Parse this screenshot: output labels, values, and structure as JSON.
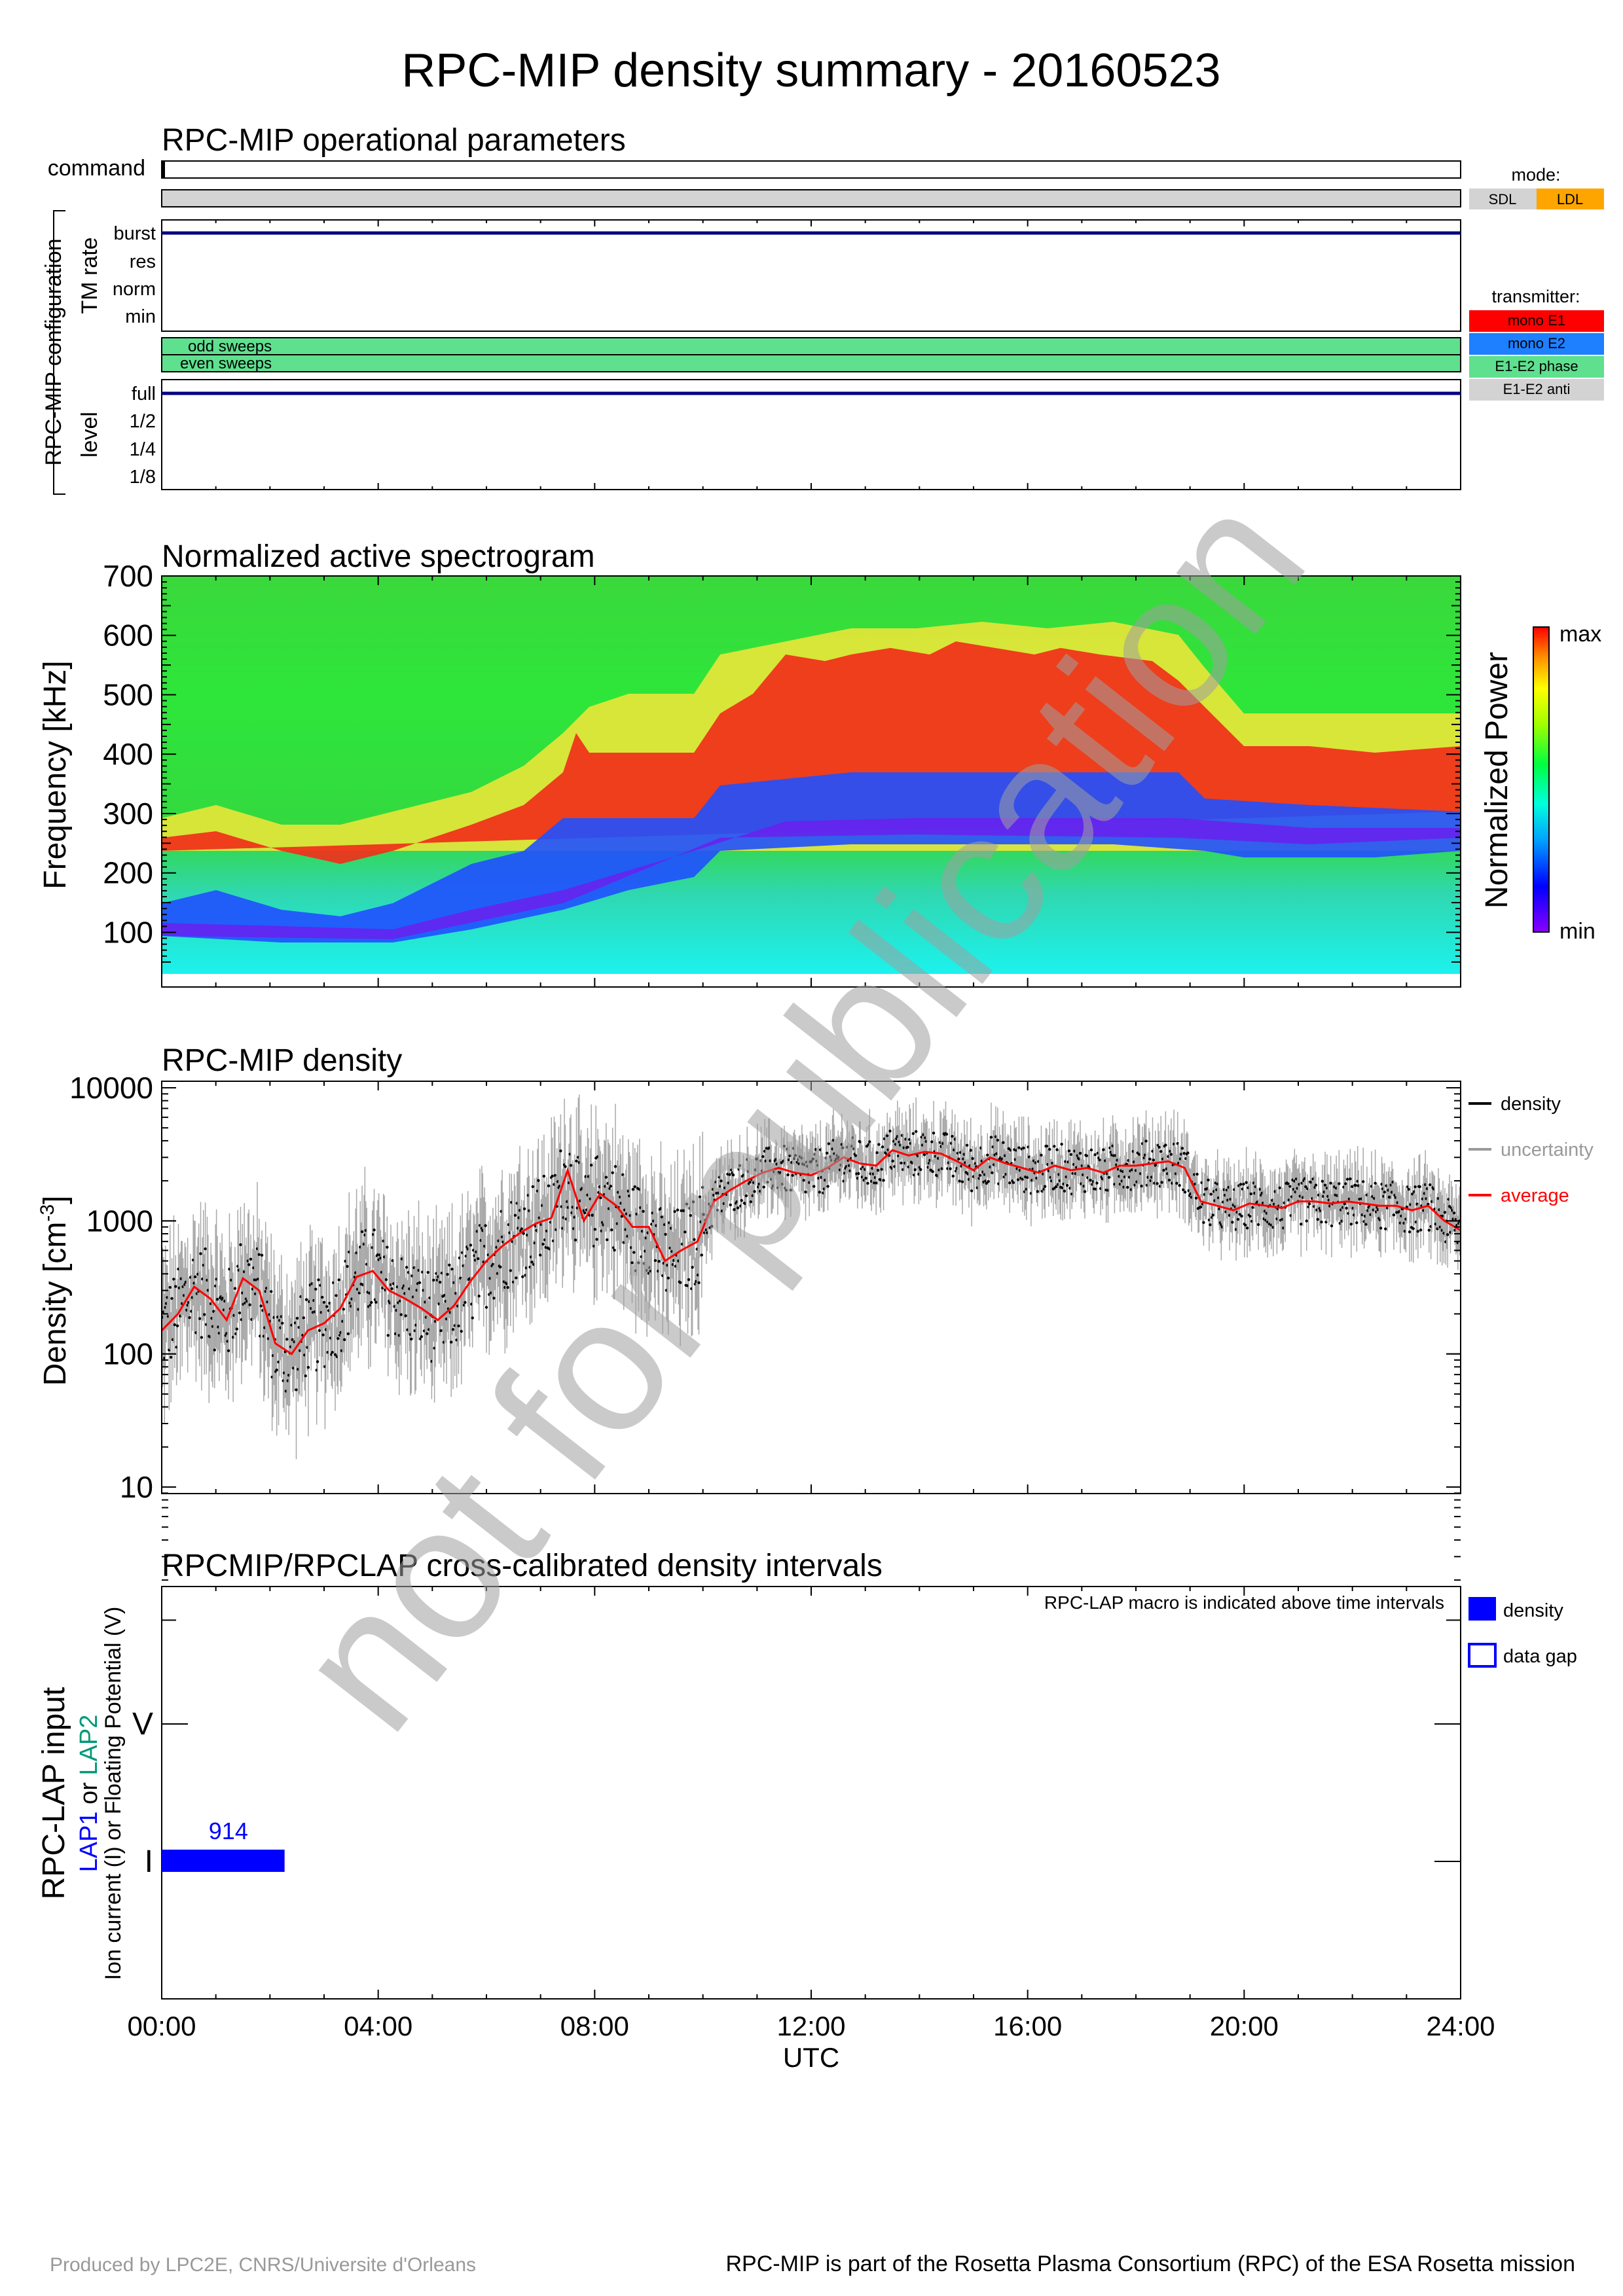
{
  "title": "RPC-MIP density summary - 20160523",
  "ops": {
    "title": "RPC-MIP operational parameters",
    "command_label": "command",
    "group_label": "RPC-MIP configuration",
    "tm_rate_label": "TM rate",
    "tm_rate_ticks": [
      "burst",
      "res",
      "norm",
      "min"
    ],
    "tm_rate_value": "burst",
    "odd_label": "odd sweeps",
    "even_label": "even sweeps",
    "level_label": "level",
    "level_ticks": [
      "full",
      "1/2",
      "1/4",
      "1/8"
    ],
    "level_value": "full",
    "mode_legend": {
      "title": "mode:",
      "items": [
        {
          "label": "SDL",
          "color": "#d3d3d3"
        },
        {
          "label": "LDL",
          "color": "#ffa500"
        }
      ]
    },
    "transmitter_legend": {
      "title": "transmitter:",
      "items": [
        {
          "label": "mono E1",
          "color": "#ff0000"
        },
        {
          "label": "mono E2",
          "color": "#1e7fff"
        },
        {
          "label": "E1-E2 phase",
          "color": "#5fe08f"
        },
        {
          "label": "E1-E2 anti",
          "color": "#d3d3d3"
        }
      ]
    },
    "colors": {
      "mode_bar": "#d3d3d3",
      "sweep_bar": "#5fe08f",
      "line": "#000080"
    }
  },
  "spectrogram": {
    "title": "Normalized active spectrogram",
    "ylabel": "Frequency [kHz]",
    "yticks": [
      100,
      200,
      300,
      400,
      500,
      600,
      700
    ],
    "ylim": [
      30,
      700
    ],
    "colorbar_label": "Normalized Power",
    "colorbar_max": "max",
    "colorbar_min": "min"
  },
  "chart_data": {
    "type": "scatter",
    "title": "RPC-MIP density",
    "ylabel": "Density [cm",
    "ylabel_sup": "-3",
    "ylabel_close": "]",
    "yscale": "log",
    "ylim": [
      10,
      10000
    ],
    "yticks": [
      "10",
      "100",
      "1000",
      "10000"
    ],
    "xlim": [
      0,
      24
    ],
    "legend_position": "right",
    "series": [
      {
        "name": "density",
        "color": "#000000"
      },
      {
        "name": "uncertainty",
        "color": "#999999"
      },
      {
        "name": "average",
        "color": "#ff0000"
      }
    ],
    "average_x": [
      0,
      0.3,
      0.6,
      0.9,
      1.2,
      1.5,
      1.8,
      2.1,
      2.4,
      2.7,
      3.0,
      3.3,
      3.6,
      3.9,
      4.2,
      4.5,
      4.8,
      5.1,
      5.4,
      5.7,
      6.0,
      6.3,
      6.6,
      6.9,
      7.2,
      7.5,
      7.8,
      8.1,
      8.4,
      8.7,
      9.0,
      9.3,
      9.6,
      9.9,
      10.2,
      10.5,
      10.8,
      11.1,
      11.4,
      11.7,
      12.0,
      12.3,
      12.6,
      12.9,
      13.2,
      13.5,
      13.8,
      14.1,
      14.4,
      14.7,
      15.0,
      15.3,
      15.6,
      15.9,
      16.2,
      16.5,
      16.8,
      17.1,
      17.4,
      17.7,
      18.0,
      18.3,
      18.6,
      18.9,
      19.2,
      19.5,
      19.8,
      20.1,
      20.4,
      20.7,
      21.0,
      21.3,
      21.6,
      21.9,
      22.2,
      22.5,
      22.8,
      23.1,
      23.4,
      23.7,
      24.0
    ],
    "average_y": [
      150,
      200,
      320,
      260,
      180,
      370,
      300,
      120,
      100,
      150,
      170,
      220,
      380,
      420,
      300,
      260,
      220,
      180,
      230,
      350,
      500,
      650,
      800,
      950,
      1050,
      2400,
      1000,
      1600,
      1300,
      900,
      900,
      500,
      600,
      700,
      1400,
      1700,
      2000,
      2300,
      2500,
      2300,
      2200,
      2500,
      3000,
      2700,
      2600,
      3400,
      3100,
      3300,
      3200,
      2800,
      2400,
      3000,
      2700,
      2500,
      2300,
      2600,
      2400,
      2500,
      2300,
      2600,
      2600,
      2700,
      2800,
      2500,
      1400,
      1300,
      1200,
      1350,
      1300,
      1250,
      1400,
      1400,
      1350,
      1400,
      1350,
      1300,
      1300,
      1200,
      1300,
      1000,
      850
    ]
  },
  "lap": {
    "title": "RPCMIP/RPCLAP cross-calibrated density intervals",
    "ylabel_main": "RPC-LAP input",
    "ylabel_lap1": "LAP1",
    "ylabel_or": " or ",
    "ylabel_lap2": "LAP2",
    "ylabel_sub": "Ion current (I) or Floating Potential (V)",
    "ytick_v": "V",
    "ytick_i": "I",
    "note": "RPC-LAP macro is indicated above time intervals",
    "intervals": [
      {
        "start_h": 0.0,
        "end_h": 2.27,
        "macro": "914",
        "input": "I"
      }
    ],
    "legend": [
      {
        "label": "density",
        "style": "filled"
      },
      {
        "label": "data gap",
        "style": "open"
      }
    ],
    "color": "#0000ff"
  },
  "xaxis": {
    "label": "UTC",
    "ticks": [
      "00:00",
      "04:00",
      "08:00",
      "12:00",
      "16:00",
      "20:00",
      "24:00"
    ]
  },
  "watermark": "not for publication",
  "footer": {
    "left": "Produced by LPC2E, CNRS/Universite d'Orleans",
    "right": "RPC-MIP is part of the Rosetta Plasma Consortium (RPC) of the ESA Rosetta mission"
  }
}
